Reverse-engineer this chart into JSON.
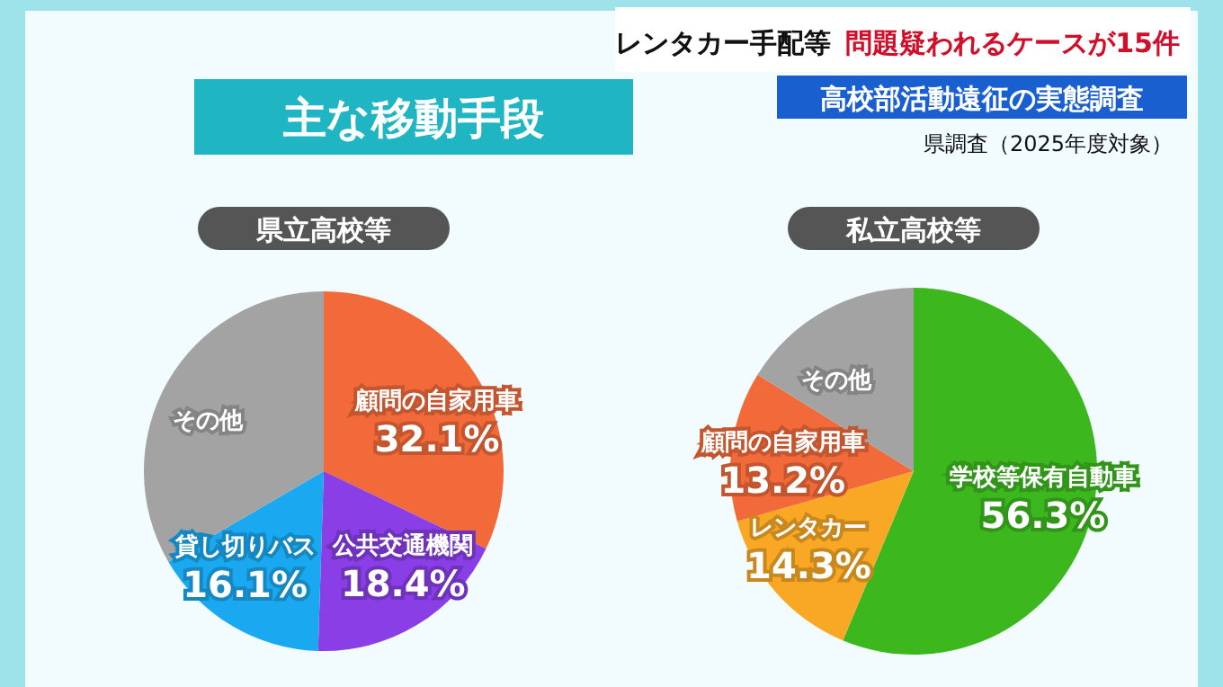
{
  "chart_data": [
    {
      "type": "pie",
      "title": "県立高校等",
      "annotations": [
        "レンタカー手配等",
        "問題疑われるケースが15件",
        "高校部活動遠征の実態調査",
        "主な移動手段",
        "県調査（2025年度対象）"
      ],
      "categories": [
        "顧問の自家用車",
        "公共交通機関",
        "貸し切りバス",
        "その他"
      ],
      "values": [
        32.1,
        18.4,
        16.1,
        33.4
      ],
      "value_labels": [
        "32.1%",
        "18.4%",
        "16.1%",
        null
      ],
      "colors": [
        "#f26a3a",
        "#8a3ee6",
        "#1aa8f0",
        "#a3a3a3"
      ]
    },
    {
      "type": "pie",
      "title": "私立高校等",
      "categories": [
        "学校等保有自動車",
        "レンタカー",
        "顧問の自家用車",
        "その他"
      ],
      "values": [
        56.3,
        14.3,
        13.2,
        16.2
      ],
      "value_labels": [
        "56.3%",
        "14.3%",
        "13.2%",
        null
      ],
      "colors": [
        "#3cb81e",
        "#f9a825",
        "#f26a3a",
        "#a3a3a3"
      ]
    }
  ]
}
